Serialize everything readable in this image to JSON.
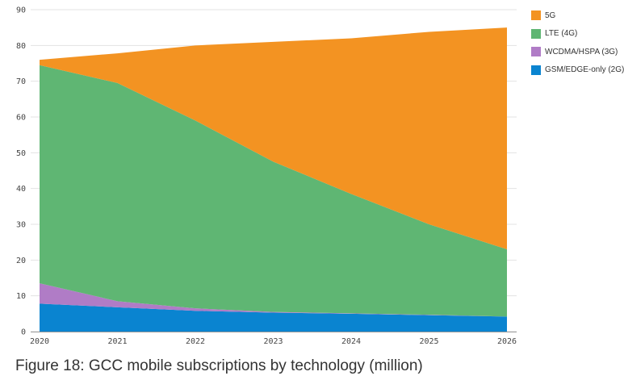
{
  "chart_data": {
    "type": "area",
    "stacked": true,
    "title": "",
    "xlabel": "",
    "ylabel": "",
    "x": [
      "2020",
      "2021",
      "2022",
      "2023",
      "2024",
      "2025",
      "2026"
    ],
    "ylim": [
      0,
      90
    ],
    "yticks": [
      0,
      10,
      20,
      30,
      40,
      50,
      60,
      70,
      80,
      90
    ],
    "grid": true,
    "legend_position": "right",
    "series": [
      {
        "name": "GSM/EDGE-only (2G)",
        "color": "#0a84d0",
        "values": [
          7.8,
          6.8,
          5.8,
          5.3,
          5.0,
          4.6,
          4.2
        ]
      },
      {
        "name": "WCDMA/HSPA (3G)",
        "color": "#b07cc6",
        "values": [
          5.7,
          1.7,
          0.7,
          0.2,
          0.1,
          0.1,
          0.0
        ]
      },
      {
        "name": "LTE (4G)",
        "color": "#5fb673",
        "values": [
          61.0,
          61.0,
          52.5,
          42.0,
          33.4,
          25.3,
          18.8
        ]
      },
      {
        "name": "5G",
        "color": "#f39322",
        "values": [
          1.5,
          8.3,
          21.0,
          33.5,
          43.5,
          53.8,
          62.0
        ]
      }
    ]
  },
  "legend_order": [
    3,
    2,
    1,
    0
  ],
  "caption": "Figure 18: GCC mobile subscriptions by technology (million)"
}
